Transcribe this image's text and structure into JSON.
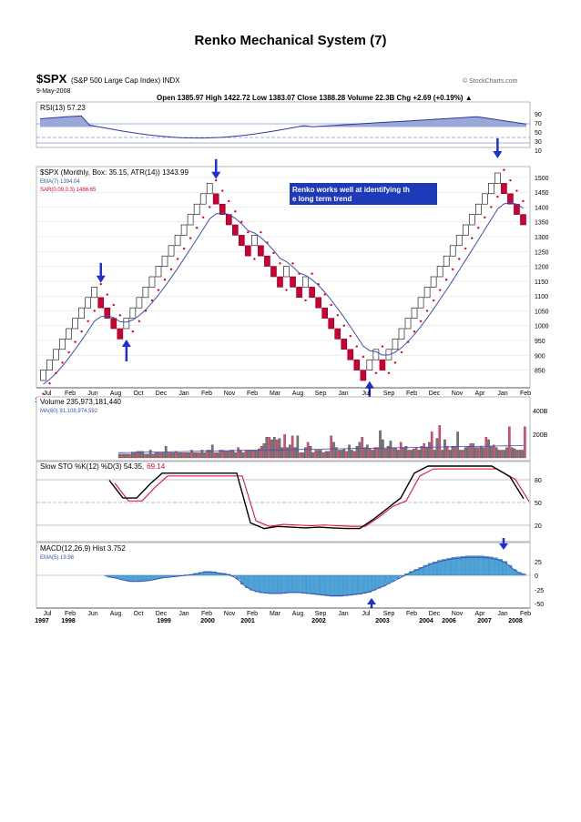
{
  "page": {
    "title": "Renko Mechanical System (7)"
  },
  "header": {
    "symbol": "$SPX",
    "symbol_desc": "(S&P 500 Large Cap Index) INDX",
    "date": "9-May-2008",
    "source": "© StockCharts.com",
    "quote": "Open 1385.97 High 1422.72 Low 1383.07 Close 1388.28 Volume 22.3B Chg +2.69 (+0.19%) ▲"
  },
  "rsi": {
    "label": "RSI(13) 57.23",
    "levels": [
      "90",
      "70",
      "50",
      "30",
      "10"
    ]
  },
  "renko": {
    "label": "$SPX (Monthly, Box: 35.15, ATR(14)) 1343.99",
    "ema_label": "EMA(7) 1394.04",
    "sar_label": "SAR(0.09,0.3) 1486.65",
    "annotation": "Renko works well at identifying the long term trend",
    "y_ticks": [
      "1500",
      "1450",
      "1400",
      "1350",
      "1300",
      "1250",
      "1200",
      "1150",
      "1100",
      "1050",
      "1000",
      "950",
      "900",
      "850"
    ],
    "colors": {
      "up": "#ffffff",
      "down": "#cc0033",
      "ema": "#3d4fb5",
      "sar": "#e8002a",
      "arrow": "#1f2fd6",
      "annotation_bg": "#1f3ab8"
    }
  },
  "volume": {
    "label": "Volume 235,973,181,440",
    "ma_label": "MA(60) 91,108,974,592",
    "y_ticks": [
      "400B",
      "200B"
    ]
  },
  "stoch": {
    "label_a": "Slow STO %K(12) %D(3) 54.35,",
    "label_b": "69.14",
    "y_ticks": [
      "80",
      "50",
      "20"
    ]
  },
  "macd": {
    "label": "MACD(12,26,9) Hist 3.752",
    "ema_label": "EMA(5) 19.98",
    "y_ticks": [
      "25",
      "0",
      "-25",
      "-50"
    ]
  },
  "x_axis": {
    "months": [
      "Jul",
      "Feb",
      "Jun",
      "Aug",
      "Oct",
      "Dec",
      "Jan",
      "Feb",
      "Nov",
      "Feb",
      "Mar",
      "Aug",
      "Sep",
      "Jan",
      "Jul",
      "Sep",
      "Feb",
      "Dec",
      "Nov",
      "Apr",
      "Jan",
      "Feb"
    ],
    "years": [
      "1997",
      "1998",
      "1999",
      "2000",
      "2001",
      "2002",
      "2003",
      "2004",
      "2006",
      "2007",
      "2008"
    ]
  },
  "chart_data": {
    "type": "renko",
    "box_size": 35.15,
    "y_axis_ticks": [
      850,
      900,
      950,
      1000,
      1050,
      1100,
      1150,
      1200,
      1250,
      1300,
      1350,
      1400,
      1450,
      1500
    ],
    "bricks": [
      {
        "dir": "up",
        "low": 815,
        "high": 850
      },
      {
        "dir": "up",
        "low": 850,
        "high": 885
      },
      {
        "dir": "up",
        "low": 885,
        "high": 920
      },
      {
        "dir": "up",
        "low": 920,
        "high": 955
      },
      {
        "dir": "up",
        "low": 955,
        "high": 990
      },
      {
        "dir": "up",
        "low": 990,
        "high": 1025
      },
      {
        "dir": "up",
        "low": 1025,
        "high": 1060
      },
      {
        "dir": "up",
        "low": 1060,
        "high": 1095
      },
      {
        "dir": "up",
        "low": 1095,
        "high": 1130
      },
      {
        "dir": "down",
        "low": 1060,
        "high": 1095
      },
      {
        "dir": "down",
        "low": 1025,
        "high": 1060
      },
      {
        "dir": "down",
        "low": 990,
        "high": 1025
      },
      {
        "dir": "down",
        "low": 955,
        "high": 990
      },
      {
        "dir": "up",
        "low": 990,
        "high": 1025
      },
      {
        "dir": "up",
        "low": 1025,
        "high": 1060
      },
      {
        "dir": "up",
        "low": 1060,
        "high": 1095
      },
      {
        "dir": "up",
        "low": 1095,
        "high": 1130
      },
      {
        "dir": "up",
        "low": 1130,
        "high": 1165
      },
      {
        "dir": "up",
        "low": 1165,
        "high": 1200
      },
      {
        "dir": "up",
        "low": 1200,
        "high": 1235
      },
      {
        "dir": "up",
        "low": 1235,
        "high": 1270
      },
      {
        "dir": "up",
        "low": 1270,
        "high": 1305
      },
      {
        "dir": "up",
        "low": 1305,
        "high": 1340
      },
      {
        "dir": "up",
        "low": 1340,
        "high": 1375
      },
      {
        "dir": "up",
        "low": 1375,
        "high": 1410
      },
      {
        "dir": "up",
        "low": 1410,
        "high": 1445
      },
      {
        "dir": "up",
        "low": 1445,
        "high": 1480
      },
      {
        "dir": "down",
        "low": 1410,
        "high": 1445
      },
      {
        "dir": "down",
        "low": 1375,
        "high": 1410
      },
      {
        "dir": "down",
        "low": 1340,
        "high": 1375
      },
      {
        "dir": "down",
        "low": 1305,
        "high": 1340
      },
      {
        "dir": "down",
        "low": 1270,
        "high": 1305
      },
      {
        "dir": "down",
        "low": 1235,
        "high": 1270
      },
      {
        "dir": "up",
        "low": 1270,
        "high": 1305
      },
      {
        "dir": "down",
        "low": 1235,
        "high": 1270
      },
      {
        "dir": "down",
        "low": 1200,
        "high": 1235
      },
      {
        "dir": "down",
        "low": 1165,
        "high": 1200
      },
      {
        "dir": "down",
        "low": 1130,
        "high": 1165
      },
      {
        "dir": "up",
        "low": 1165,
        "high": 1200
      },
      {
        "dir": "down",
        "low": 1130,
        "high": 1165
      },
      {
        "dir": "down",
        "low": 1095,
        "high": 1130
      },
      {
        "dir": "up",
        "low": 1130,
        "high": 1165
      },
      {
        "dir": "down",
        "low": 1095,
        "high": 1130
      },
      {
        "dir": "down",
        "low": 1060,
        "high": 1095
      },
      {
        "dir": "down",
        "low": 1025,
        "high": 1060
      },
      {
        "dir": "down",
        "low": 990,
        "high": 1025
      },
      {
        "dir": "down",
        "low": 955,
        "high": 990
      },
      {
        "dir": "down",
        "low": 920,
        "high": 955
      },
      {
        "dir": "down",
        "low": 885,
        "high": 920
      },
      {
        "dir": "down",
        "low": 850,
        "high": 885
      },
      {
        "dir": "down",
        "low": 815,
        "high": 850
      },
      {
        "dir": "up",
        "low": 850,
        "high": 885
      },
      {
        "dir": "up",
        "low": 885,
        "high": 920
      },
      {
        "dir": "down",
        "low": 850,
        "high": 885
      },
      {
        "dir": "up",
        "low": 885,
        "high": 920
      },
      {
        "dir": "up",
        "low": 920,
        "high": 955
      },
      {
        "dir": "up",
        "low": 955,
        "high": 990
      },
      {
        "dir": "up",
        "low": 990,
        "high": 1025
      },
      {
        "dir": "up",
        "low": 1025,
        "high": 1060
      },
      {
        "dir": "up",
        "low": 1060,
        "high": 1095
      },
      {
        "dir": "up",
        "low": 1095,
        "high": 1130
      },
      {
        "dir": "up",
        "low": 1130,
        "high": 1165
      },
      {
        "dir": "up",
        "low": 1165,
        "high": 1200
      },
      {
        "dir": "up",
        "low": 1200,
        "high": 1235
      },
      {
        "dir": "up",
        "low": 1235,
        "high": 1270
      },
      {
        "dir": "up",
        "low": 1270,
        "high": 1305
      },
      {
        "dir": "up",
        "low": 1305,
        "high": 1340
      },
      {
        "dir": "up",
        "low": 1340,
        "high": 1375
      },
      {
        "dir": "up",
        "low": 1375,
        "high": 1410
      },
      {
        "dir": "up",
        "low": 1410,
        "high": 1445
      },
      {
        "dir": "up",
        "low": 1445,
        "high": 1480
      },
      {
        "dir": "up",
        "low": 1480,
        "high": 1515
      },
      {
        "dir": "down",
        "low": 1445,
        "high": 1480
      },
      {
        "dir": "down",
        "low": 1410,
        "high": 1445
      },
      {
        "dir": "down",
        "low": 1375,
        "high": 1410
      },
      {
        "dir": "down",
        "low": 1340,
        "high": 1375
      }
    ],
    "volume_values_B": [
      30,
      30,
      30,
      30,
      30,
      45,
      45,
      50,
      50,
      50,
      30,
      30,
      60,
      30,
      40,
      40,
      40,
      40,
      90,
      40,
      40,
      40,
      50,
      40,
      40,
      40,
      40,
      40,
      60,
      40,
      40,
      40,
      60,
      40,
      60,
      60,
      100,
      40,
      40,
      60,
      60,
      50,
      50,
      60,
      60,
      40,
      80,
      60,
      40,
      60,
      60,
      60,
      60,
      60,
      70,
      90,
      110,
      160,
      160,
      140,
      160,
      140,
      150,
      80,
      180,
      80,
      100,
      170,
      80,
      170,
      40,
      40,
      80,
      120,
      90,
      40,
      60,
      60,
      60,
      40,
      50,
      50,
      170,
      120,
      80,
      60,
      60,
      70,
      50,
      100,
      60,
      50,
      90,
      120,
      160,
      80,
      100,
      70,
      60,
      80,
      80,
      210,
      140,
      70,
      90,
      130,
      80,
      80,
      60,
      120,
      80,
      90,
      60,
      60,
      70,
      80,
      60,
      90,
      110,
      80,
      120,
      200,
      60,
      150,
      250,
      60,
      140,
      90,
      60,
      90,
      90,
      200,
      60,
      60,
      80,
      90,
      110,
      110,
      80,
      80,
      90,
      80,
      160,
      140,
      90,
      100,
      80,
      60,
      60,
      60,
      80,
      240,
      80,
      70,
      60,
      60,
      60,
      240
    ],
    "macd_hist": [
      -2,
      -3,
      -5,
      -8,
      -10,
      -12,
      -12,
      -12,
      -11,
      -10,
      -8,
      -6,
      -4,
      -3,
      -2,
      -1,
      0,
      1,
      2,
      4,
      6,
      8,
      8,
      7,
      5,
      4,
      2,
      -2,
      -8,
      -18,
      -25,
      -30,
      -33,
      -35,
      -36,
      -37,
      -37,
      -37,
      -36,
      -35,
      -35,
      -35,
      -36,
      -37,
      -38,
      -39,
      -40,
      -41,
      -42,
      -42,
      -42,
      -41,
      -40,
      -39,
      -38,
      -36,
      -34,
      -30,
      -26,
      -22,
      -17,
      -12,
      -7,
      -2,
      3,
      8,
      12,
      16,
      20,
      24,
      27,
      30,
      32,
      34,
      36,
      37,
      38,
      39,
      39,
      39,
      39,
      38,
      37,
      35,
      32,
      28,
      20,
      12,
      6,
      3
    ]
  }
}
